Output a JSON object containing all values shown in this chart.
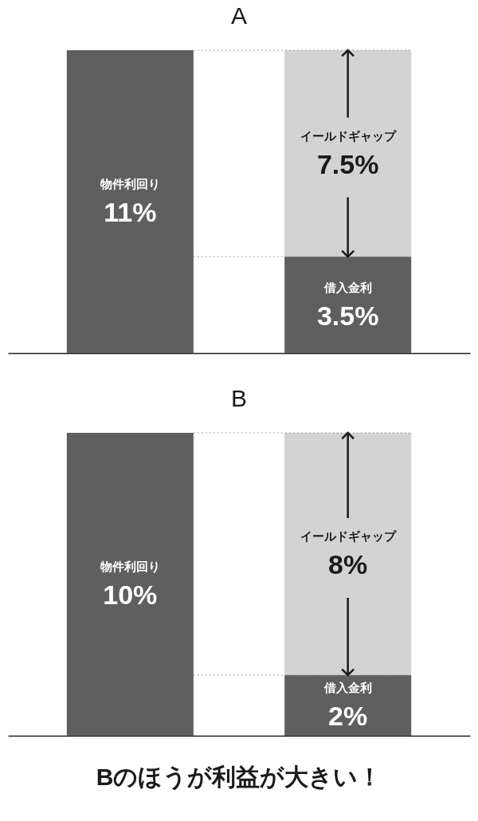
{
  "chart_data": [
    {
      "type": "bar",
      "title": "A",
      "stacked": true,
      "categories": [
        null,
        null
      ],
      "series": [
        {
          "name": "物件利回り",
          "color": "#5f5f5f",
          "values": [
            11,
            null
          ],
          "value_labels": [
            "11%",
            null
          ]
        },
        {
          "name": "借入金利",
          "color": "#5f5f5f",
          "values": [
            null,
            3.5
          ],
          "value_labels": [
            null,
            "3.5%"
          ]
        },
        {
          "name": "イールドギャップ",
          "color": "#d3d3d3",
          "values": [
            null,
            7.5
          ],
          "value_labels": [
            null,
            "7.5%"
          ]
        }
      ],
      "ref_lines": [
        {
          "axis": "y",
          "value": 11,
          "color": "#a0a0a0",
          "line_style": "dotted"
        },
        {
          "axis": "y",
          "value": 3.5,
          "color": "#a0a0a0",
          "line_style": "dotted"
        }
      ]
    },
    {
      "type": "bar",
      "title": "B",
      "stacked": true,
      "categories": [
        null,
        null
      ],
      "series": [
        {
          "name": "物件利回り",
          "color": "#5f5f5f",
          "values": [
            10,
            null
          ],
          "value_labels": [
            "10%",
            null
          ]
        },
        {
          "name": "借入金利",
          "color": "#5f5f5f",
          "values": [
            null,
            2
          ],
          "value_labels": [
            null,
            "2%"
          ]
        },
        {
          "name": "イールドギャップ",
          "color": "#d3d3d3",
          "values": [
            null,
            8
          ],
          "value_labels": [
            null,
            "8%"
          ]
        }
      ],
      "ref_lines": [
        {
          "axis": "y",
          "value": 10,
          "color": "#a0a0a0",
          "line_style": "dotted"
        },
        {
          "axis": "y",
          "value": 2,
          "color": "#a0a0a0",
          "line_style": "dotted"
        }
      ],
      "annotations": [
        "Bのほうが利益が大きい！"
      ]
    }
  ]
}
